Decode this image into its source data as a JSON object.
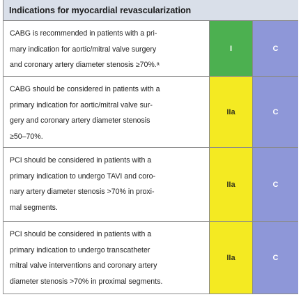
{
  "header": {
    "title": "Indications for myocardial revascularization"
  },
  "table": {
    "rows": [
      {
        "text": [
          "CABG is recommended in patients with a pri-",
          "mary indication for aortic/mitral valve surgery",
          "and coronary artery diameter stenosis ≥70%.ᵃ"
        ],
        "class": "I",
        "level": "C"
      },
      {
        "text": [
          "CABG should be considered in patients with a",
          "primary indication for aortic/mitral valve sur-",
          "gery and coronary artery diameter stenosis",
          "≥50–70%."
        ],
        "class": "IIa",
        "level": "C"
      },
      {
        "text": [
          "PCI should be considered in patients with a",
          "primary indication to undergo TAVI and coro-",
          "nary artery diameter stenosis >70% in proxi-",
          "mal segments."
        ],
        "class": "IIa",
        "level": "C"
      },
      {
        "text": [
          "PCI should be considered in patients with a",
          "primary indication to undergo transcatheter",
          "mitral valve interventions and coronary artery",
          "diameter stenosis >70% in proximal segments."
        ],
        "class": "IIa",
        "level": "C"
      }
    ]
  }
}
